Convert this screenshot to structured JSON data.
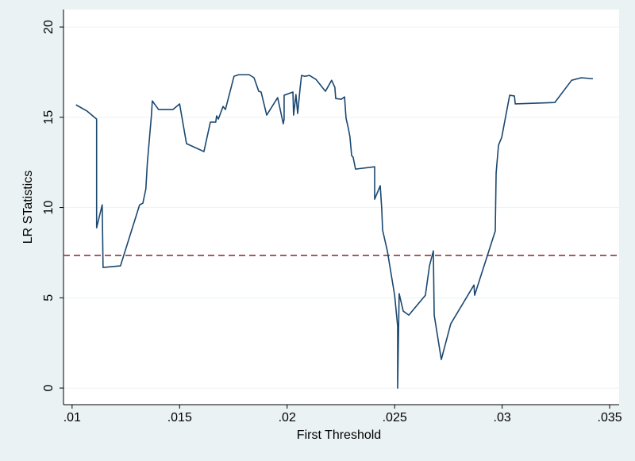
{
  "chart_data": {
    "type": "line",
    "x_label": "First Threshold",
    "y_label": "LR STatistics",
    "xlim": [
      0.0096,
      0.03544
    ],
    "ylim": [
      -0.92,
      20.97
    ],
    "xticks": [
      {
        "value": 0.01,
        "label": ".01"
      },
      {
        "value": 0.015,
        "label": ".015"
      },
      {
        "value": 0.02,
        "label": ".02"
      },
      {
        "value": 0.025,
        "label": ".025"
      },
      {
        "value": 0.03,
        "label": ".03"
      },
      {
        "value": 0.035,
        "label": ".035"
      }
    ],
    "yticks": [
      0,
      5,
      10,
      15,
      20
    ],
    "grid": true,
    "hline": {
      "value": 7.35,
      "color": "#90353b"
    },
    "x": [
      0.01018,
      0.0107,
      0.01114,
      0.01114,
      0.0114,
      0.01144,
      0.01225,
      0.01314,
      0.01329,
      0.01343,
      0.0135,
      0.01369,
      0.01373,
      0.01402,
      0.01469,
      0.015,
      0.01532,
      0.01613,
      0.01643,
      0.01668,
      0.01672,
      0.0168,
      0.01702,
      0.01713,
      0.01753,
      0.01775,
      0.01823,
      0.01846,
      0.01868,
      0.01879,
      0.01905,
      0.01956,
      0.01982,
      0.01986,
      0.01986,
      0.02027,
      0.0203,
      0.02041,
      0.02049,
      0.0206,
      0.02067,
      0.02082,
      0.02104,
      0.02134,
      0.02178,
      0.02207,
      0.02222,
      0.02226,
      0.02252,
      0.02267,
      0.02274,
      0.02285,
      0.02292,
      0.023,
      0.02307,
      0.02318,
      0.02407,
      0.02407,
      0.02433,
      0.0244,
      0.02444,
      0.02466,
      0.025,
      0.02514,
      0.02514,
      0.02521,
      0.0254,
      0.02566,
      0.02643,
      0.02662,
      0.0268,
      0.02684,
      0.02717,
      0.02761,
      0.02869,
      0.02872,
      0.02968,
      0.02972,
      0.02983,
      0.02998,
      0.03035,
      0.03057,
      0.03061,
      0.03245,
      0.03323,
      0.03367,
      0.03422
    ],
    "series": [
      {
        "name": "LR",
        "color": "#1a476f",
        "values": [
          15.69,
          15.34,
          14.9,
          8.88,
          10.15,
          6.68,
          6.77,
          10.15,
          10.24,
          11.03,
          12.48,
          15.12,
          15.91,
          15.43,
          15.43,
          15.74,
          13.54,
          13.1,
          14.73,
          14.73,
          15.08,
          14.9,
          15.6,
          15.43,
          17.27,
          17.36,
          17.36,
          17.19,
          16.44,
          16.4,
          15.12,
          16.09,
          14.64,
          14.9,
          16.22,
          16.4,
          15.12,
          16.26,
          15.21,
          16.57,
          17.32,
          17.27,
          17.32,
          17.1,
          16.44,
          17.05,
          16.66,
          16.04,
          16.0,
          16.13,
          14.95,
          14.37,
          13.93,
          12.88,
          12.79,
          12.13,
          12.26,
          10.46,
          11.21,
          9.93,
          8.75,
          7.6,
          5.14,
          3.43,
          0,
          5.23,
          4.26,
          4.04,
          5.14,
          6.77,
          7.6,
          4.04,
          1.58,
          3.56,
          5.71,
          5.14,
          8.7,
          11.91,
          13.45,
          13.89,
          16.22,
          16.18,
          15.74,
          15.82,
          17.05,
          17.19,
          17.14
        ]
      }
    ]
  }
}
